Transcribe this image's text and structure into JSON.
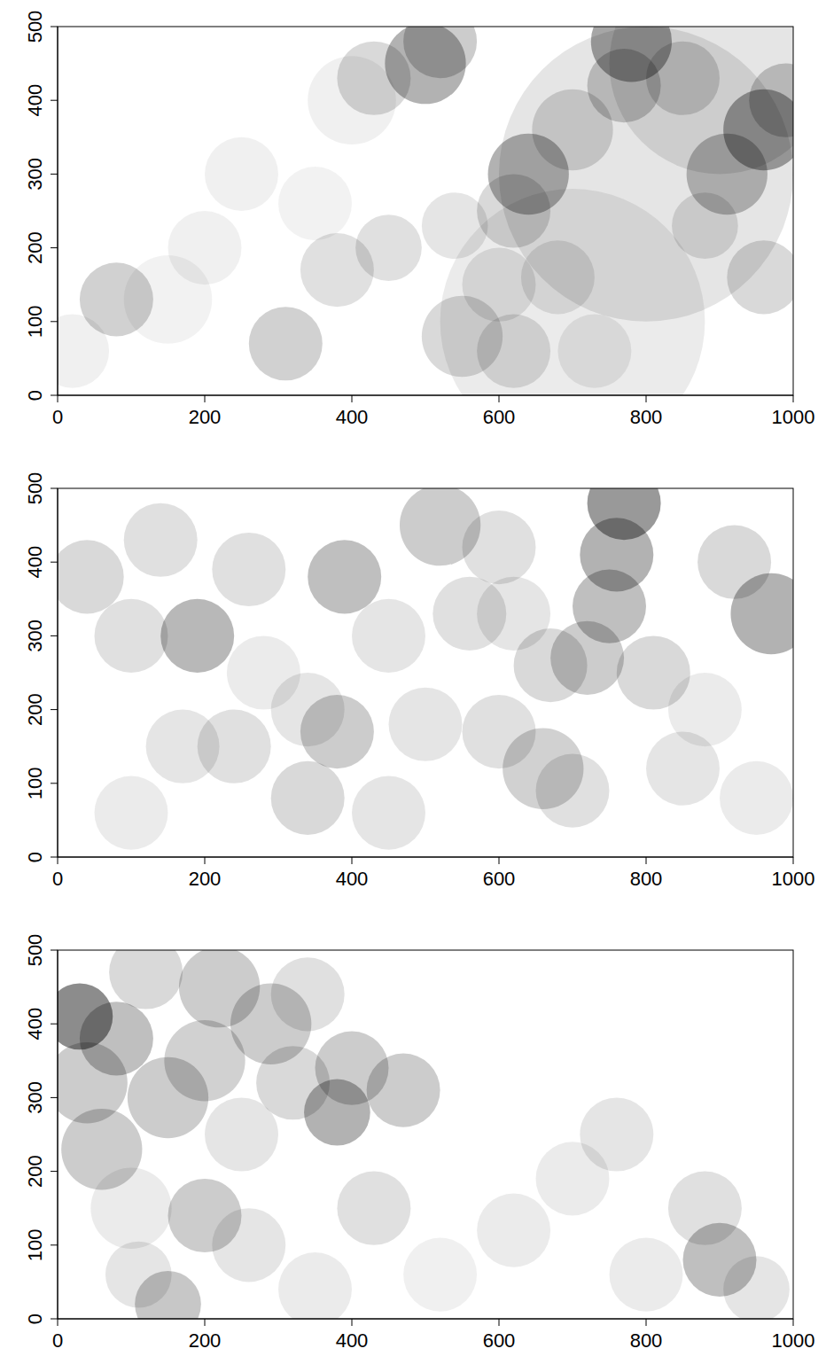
{
  "chart_data": [
    {
      "type": "heatmap",
      "xlim": [
        0,
        1000
      ],
      "ylim": [
        0,
        500
      ],
      "xticks": [
        0,
        200,
        400,
        600,
        800,
        1000
      ],
      "yticks": [
        0,
        100,
        200,
        300,
        400,
        500
      ],
      "color": "#000000",
      "discs": {
        "x": [
          800,
          700,
          900,
          500,
          430,
          520,
          780,
          770,
          700,
          960,
          990,
          910,
          640,
          620,
          540,
          450,
          380,
          80,
          310,
          550,
          620,
          680,
          600,
          850,
          960,
          880,
          250,
          200,
          150,
          20,
          400,
          730,
          350
        ],
        "y": [
          300,
          100,
          450,
          450,
          430,
          480,
          480,
          420,
          360,
          360,
          400,
          300,
          300,
          250,
          230,
          200,
          170,
          130,
          70,
          80,
          60,
          160,
          150,
          430,
          160,
          230,
          300,
          200,
          130,
          60,
          400,
          60,
          260
        ],
        "r": [
          200,
          180,
          150,
          55,
          50,
          50,
          55,
          50,
          55,
          55,
          50,
          55,
          55,
          50,
          45,
          45,
          50,
          50,
          50,
          55,
          50,
          50,
          50,
          50,
          50,
          45,
          50,
          50,
          60,
          50,
          60,
          50,
          50
        ],
        "value": [
          0.1,
          0.08,
          0.1,
          0.3,
          0.15,
          0.2,
          0.35,
          0.2,
          0.15,
          0.35,
          0.2,
          0.25,
          0.3,
          0.15,
          0.1,
          0.12,
          0.12,
          0.18,
          0.18,
          0.15,
          0.12,
          0.1,
          0.1,
          0.15,
          0.15,
          0.12,
          0.06,
          0.06,
          0.05,
          0.06,
          0.06,
          0.08,
          0.05
        ]
      }
    },
    {
      "type": "heatmap",
      "xlim": [
        0,
        1000
      ],
      "ylim": [
        0,
        500
      ],
      "xticks": [
        0,
        200,
        400,
        600,
        800,
        1000
      ],
      "yticks": [
        0,
        100,
        200,
        300,
        400,
        500
      ],
      "color": "#000000",
      "discs": {
        "x": [
          770,
          760,
          750,
          720,
          670,
          810,
          520,
          600,
          390,
          190,
          260,
          380,
          340,
          240,
          170,
          340,
          660,
          700,
          600,
          970,
          920,
          40,
          100,
          140,
          450,
          500,
          850,
          950,
          450,
          100,
          560,
          280,
          880,
          620
        ],
        "y": [
          480,
          410,
          340,
          270,
          260,
          250,
          450,
          420,
          380,
          300,
          390,
          170,
          200,
          150,
          150,
          80,
          120,
          90,
          170,
          330,
          400,
          380,
          300,
          430,
          300,
          180,
          120,
          80,
          60,
          60,
          330,
          250,
          200,
          330
        ],
        "r": [
          50,
          50,
          50,
          50,
          50,
          50,
          55,
          50,
          50,
          50,
          50,
          50,
          50,
          50,
          50,
          50,
          55,
          50,
          50,
          55,
          50,
          50,
          50,
          50,
          50,
          50,
          50,
          50,
          50,
          50,
          50,
          50,
          50,
          50
        ],
        "value": [
          0.4,
          0.3,
          0.25,
          0.2,
          0.15,
          0.15,
          0.2,
          0.12,
          0.25,
          0.28,
          0.12,
          0.2,
          0.1,
          0.12,
          0.1,
          0.15,
          0.18,
          0.12,
          0.12,
          0.3,
          0.15,
          0.15,
          0.12,
          0.12,
          0.1,
          0.1,
          0.1,
          0.08,
          0.1,
          0.08,
          0.12,
          0.08,
          0.08,
          0.1
        ]
      }
    },
    {
      "type": "heatmap",
      "xlim": [
        0,
        1000
      ],
      "ylim": [
        0,
        500
      ],
      "xticks": [
        0,
        200,
        400,
        600,
        800,
        1000
      ],
      "yticks": [
        0,
        100,
        200,
        300,
        400,
        500
      ],
      "color": "#000000",
      "discs": {
        "x": [
          30,
          80,
          40,
          60,
          150,
          200,
          220,
          290,
          320,
          380,
          400,
          470,
          250,
          200,
          150,
          110,
          260,
          430,
          350,
          900,
          880,
          760,
          700,
          620,
          520,
          800,
          950,
          120,
          340,
          100
        ],
        "y": [
          410,
          380,
          320,
          230,
          300,
          350,
          450,
          400,
          320,
          280,
          340,
          310,
          250,
          140,
          20,
          60,
          100,
          150,
          40,
          80,
          150,
          250,
          190,
          120,
          60,
          60,
          40,
          470,
          440,
          150
        ],
        "r": [
          45,
          50,
          55,
          55,
          55,
          55,
          55,
          55,
          50,
          45,
          50,
          50,
          50,
          50,
          45,
          45,
          50,
          50,
          50,
          50,
          50,
          50,
          50,
          50,
          50,
          50,
          45,
          50,
          50,
          55
        ],
        "value": [
          0.45,
          0.25,
          0.2,
          0.2,
          0.2,
          0.18,
          0.2,
          0.2,
          0.15,
          0.3,
          0.2,
          0.2,
          0.1,
          0.2,
          0.22,
          0.1,
          0.1,
          0.12,
          0.08,
          0.25,
          0.12,
          0.1,
          0.08,
          0.08,
          0.06,
          0.08,
          0.1,
          0.15,
          0.12,
          0.08
        ]
      }
    }
  ]
}
